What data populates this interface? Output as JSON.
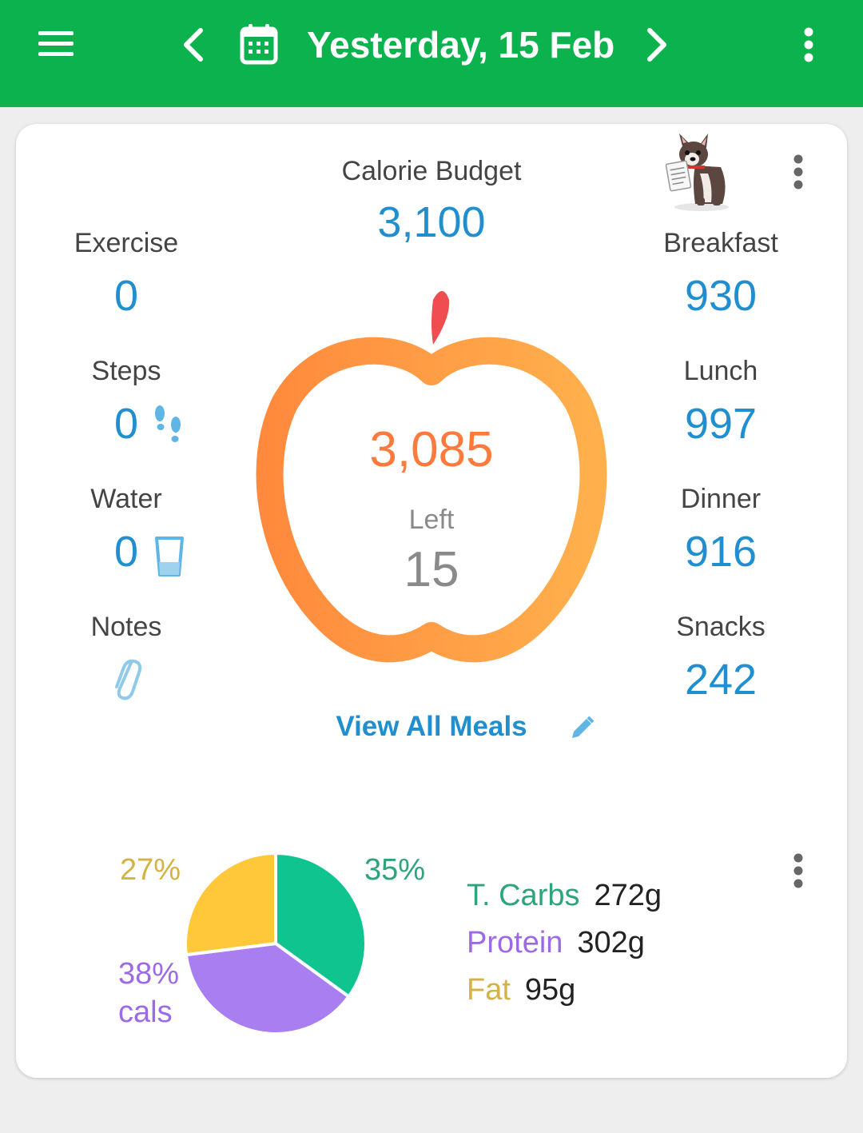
{
  "header": {
    "title": "Yesterday, 15 Feb",
    "background": "#0bb24e",
    "icons": [
      "menu-icon",
      "chevron-left-icon",
      "calendar-icon",
      "chevron-right-icon",
      "more-vert-icon"
    ]
  },
  "summary": {
    "budget_label": "Calorie Budget",
    "budget_value": "3,100",
    "eaten_value": "3,085",
    "left_label": "Left",
    "left_value": "15",
    "left_items": [
      {
        "label": "Exercise",
        "value": "0"
      },
      {
        "label": "Steps",
        "value": "0"
      },
      {
        "label": "Water",
        "value": "0"
      },
      {
        "label": "Notes",
        "icon": "paperclip-icon"
      }
    ],
    "meals": [
      {
        "label": "Breakfast",
        "value": "930"
      },
      {
        "label": "Lunch",
        "value": "997"
      },
      {
        "label": "Dinner",
        "value": "916"
      },
      {
        "label": "Snacks",
        "value": "242"
      }
    ],
    "view_all": "View All Meals",
    "accent": "#1f8fcf",
    "ring_colors": [
      "#ff8a3d",
      "#ffb04d"
    ]
  },
  "macros": {
    "pie_percents": {
      "carbs": "35%",
      "fat": "27%",
      "protein": "38%"
    },
    "cals_label": "cals",
    "items": [
      {
        "name": "T. Carbs",
        "amount": "272g",
        "color": "#2ea47a"
      },
      {
        "name": "Protein",
        "amount": "302g",
        "color": "#9c6ae6"
      },
      {
        "name": "Fat",
        "amount": "95g",
        "color": "#d5b245"
      }
    ],
    "slice_colors": {
      "carbs": "#10c48f",
      "protein": "#a97ef0",
      "fat": "#ffc83a"
    }
  },
  "chart_data": {
    "type": "pie",
    "categories": [
      "T. Carbs",
      "Fat",
      "Protein"
    ],
    "values": [
      35,
      27,
      38
    ],
    "unit": "% cals"
  }
}
